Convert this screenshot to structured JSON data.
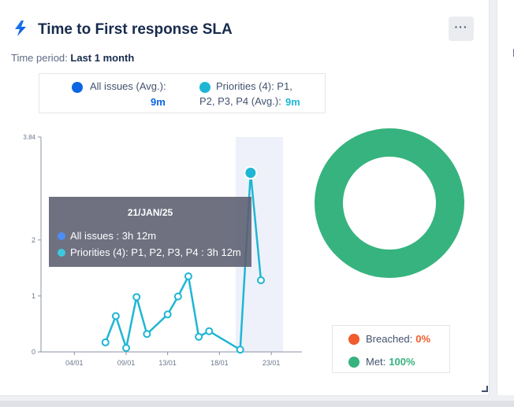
{
  "header": {
    "title": "Time to First response SLA",
    "more_label": "···",
    "time_period_label": "Time period:",
    "time_period_value": "Last 1 month"
  },
  "legend": {
    "all_issues_label": "All issues (Avg.):",
    "all_issues_value": "9m",
    "priorities_label_line1": "Priorities (4): P1,",
    "priorities_label_line2": "P2, P3, P4 (Avg.):",
    "priorities_value": "9m"
  },
  "colors": {
    "all_issues": "#0c66e4",
    "priorities": "#1fb6d4",
    "breached": "#f15b2e",
    "met": "#36b37e"
  },
  "tooltip": {
    "date": "21/JAN/25",
    "all_issues": "All issues : 3h 12m",
    "priorities": "Priorities (4): P1, P2, P3, P4 : 3h 12m"
  },
  "chart_data": {
    "type": "line",
    "x_ticks": [
      "04/01",
      "09/01",
      "13/01",
      "18/01",
      "23/01"
    ],
    "y_ticks": [
      "0",
      "1",
      "2",
      "3.84"
    ],
    "ylim": [
      0,
      3.84
    ],
    "series": [
      {
        "name": "Priorities (4): P1, P2, P3, P4",
        "points": [
          {
            "day": 7,
            "value": 0.17
          },
          {
            "day": 8,
            "value": 0.64
          },
          {
            "day": 9,
            "value": 0.07
          },
          {
            "day": 10,
            "value": 0.98
          },
          {
            "day": 11,
            "value": 0.32
          },
          {
            "day": 13,
            "value": 0.67
          },
          {
            "day": 14,
            "value": 0.99
          },
          {
            "day": 15,
            "value": 1.35
          },
          {
            "day": 16,
            "value": 0.27
          },
          {
            "day": 17,
            "value": 0.37
          },
          {
            "day": 20,
            "value": 0.04
          },
          {
            "day": 21,
            "value": 3.2
          },
          {
            "day": 22,
            "value": 1.28
          }
        ]
      }
    ],
    "highlight_day": 21
  },
  "donut": {
    "breached_label": "Breached:",
    "breached_value": "0%",
    "breached_pct": 0,
    "met_label": "Met:",
    "met_value": "100%",
    "met_pct": 100
  }
}
